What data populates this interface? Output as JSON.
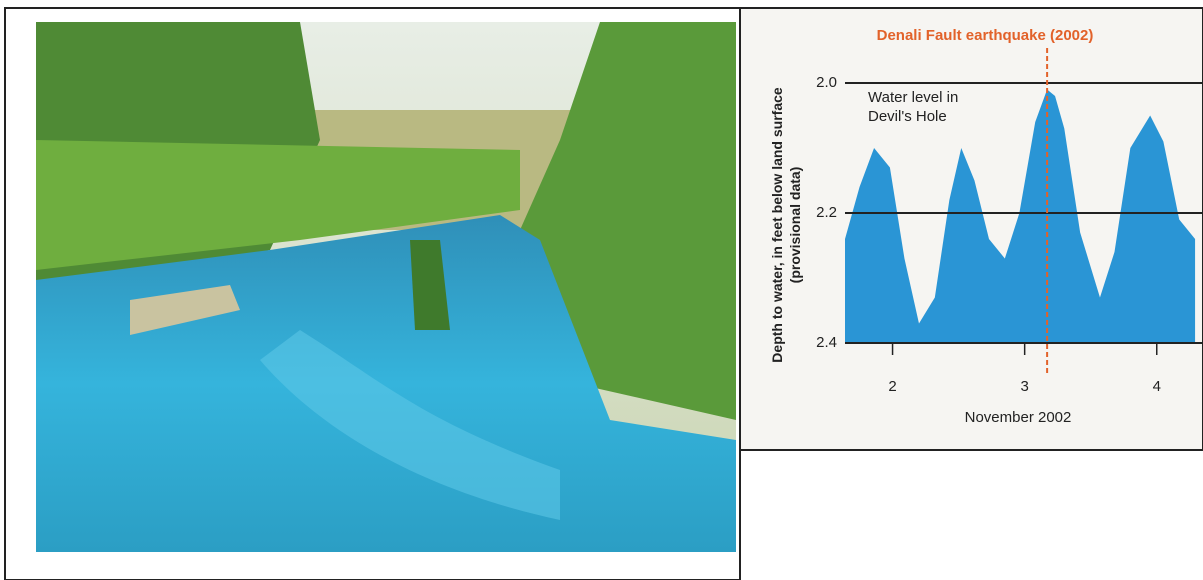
{
  "chart_data": {
    "type": "area",
    "title": "Denali Fault earthquake (2002)",
    "annotation": "Water level in Devil's Hole",
    "x_label": "November 2002",
    "y_label": "Depth to water, in feet below land surface (provisional data)",
    "x": [
      1.64,
      1.75,
      1.86,
      1.98,
      2.09,
      2.2,
      2.32,
      2.43,
      2.52,
      2.62,
      2.73,
      2.85,
      2.96,
      3.08,
      3.17,
      3.23,
      3.3,
      3.42,
      3.57,
      3.68,
      3.8,
      3.95,
      4.05,
      4.17,
      4.29
    ],
    "values": [
      2.24,
      2.16,
      2.1,
      2.13,
      2.27,
      2.37,
      2.33,
      2.18,
      2.1,
      2.15,
      2.24,
      2.27,
      2.2,
      2.06,
      2.01,
      2.02,
      2.07,
      2.23,
      2.33,
      2.26,
      2.1,
      2.05,
      2.09,
      2.21,
      2.24
    ],
    "color": "#2a95d5",
    "event_x": 3.17,
    "event_color": "#e2622a",
    "xlim": [
      1.64,
      4.35
    ],
    "xticks": [
      2,
      3,
      4
    ],
    "ylim": [
      2.0,
      2.4
    ],
    "yticks": [
      {
        "value": 2.0,
        "label": "2.0"
      },
      2.2,
      2.4
    ],
    "y_inverted": true,
    "grid": true
  }
}
